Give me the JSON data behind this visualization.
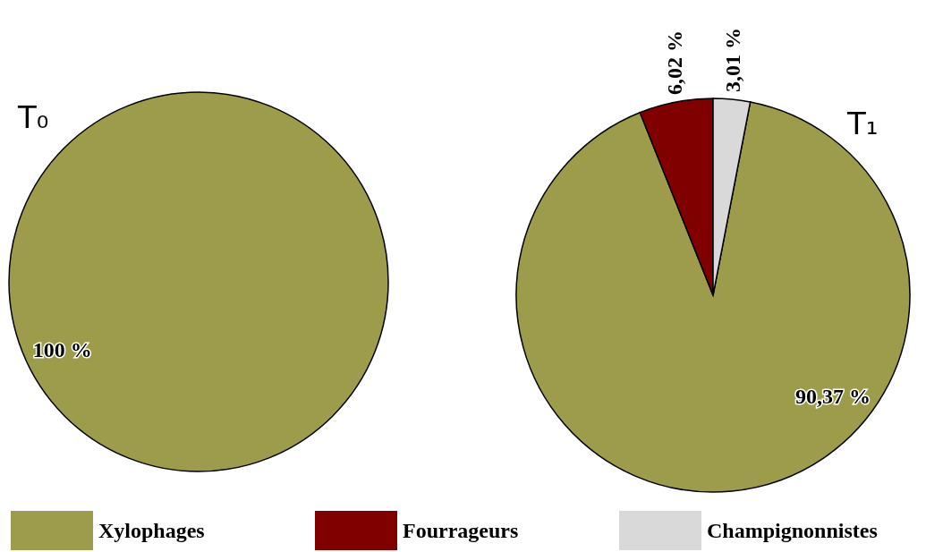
{
  "chart_data": [
    {
      "type": "pie",
      "title": "T₀",
      "categories": [
        null
      ],
      "values": [
        100
      ],
      "colors": [
        "#9c9c4a"
      ],
      "value_labels": [
        "100 %"
      ]
    },
    {
      "type": "pie",
      "title": "T₁",
      "categories": [
        "Xylophages",
        "Fourrageurs",
        "Champignonnistes"
      ],
      "values": [
        90.37,
        6.02,
        3.01
      ],
      "colors": [
        "#9c9c4a",
        "#800000",
        "#d9d9d9"
      ],
      "value_labels": [
        "90,37 %",
        "6,02 %",
        "3,01 %"
      ],
      "legend": "bottom"
    }
  ]
}
